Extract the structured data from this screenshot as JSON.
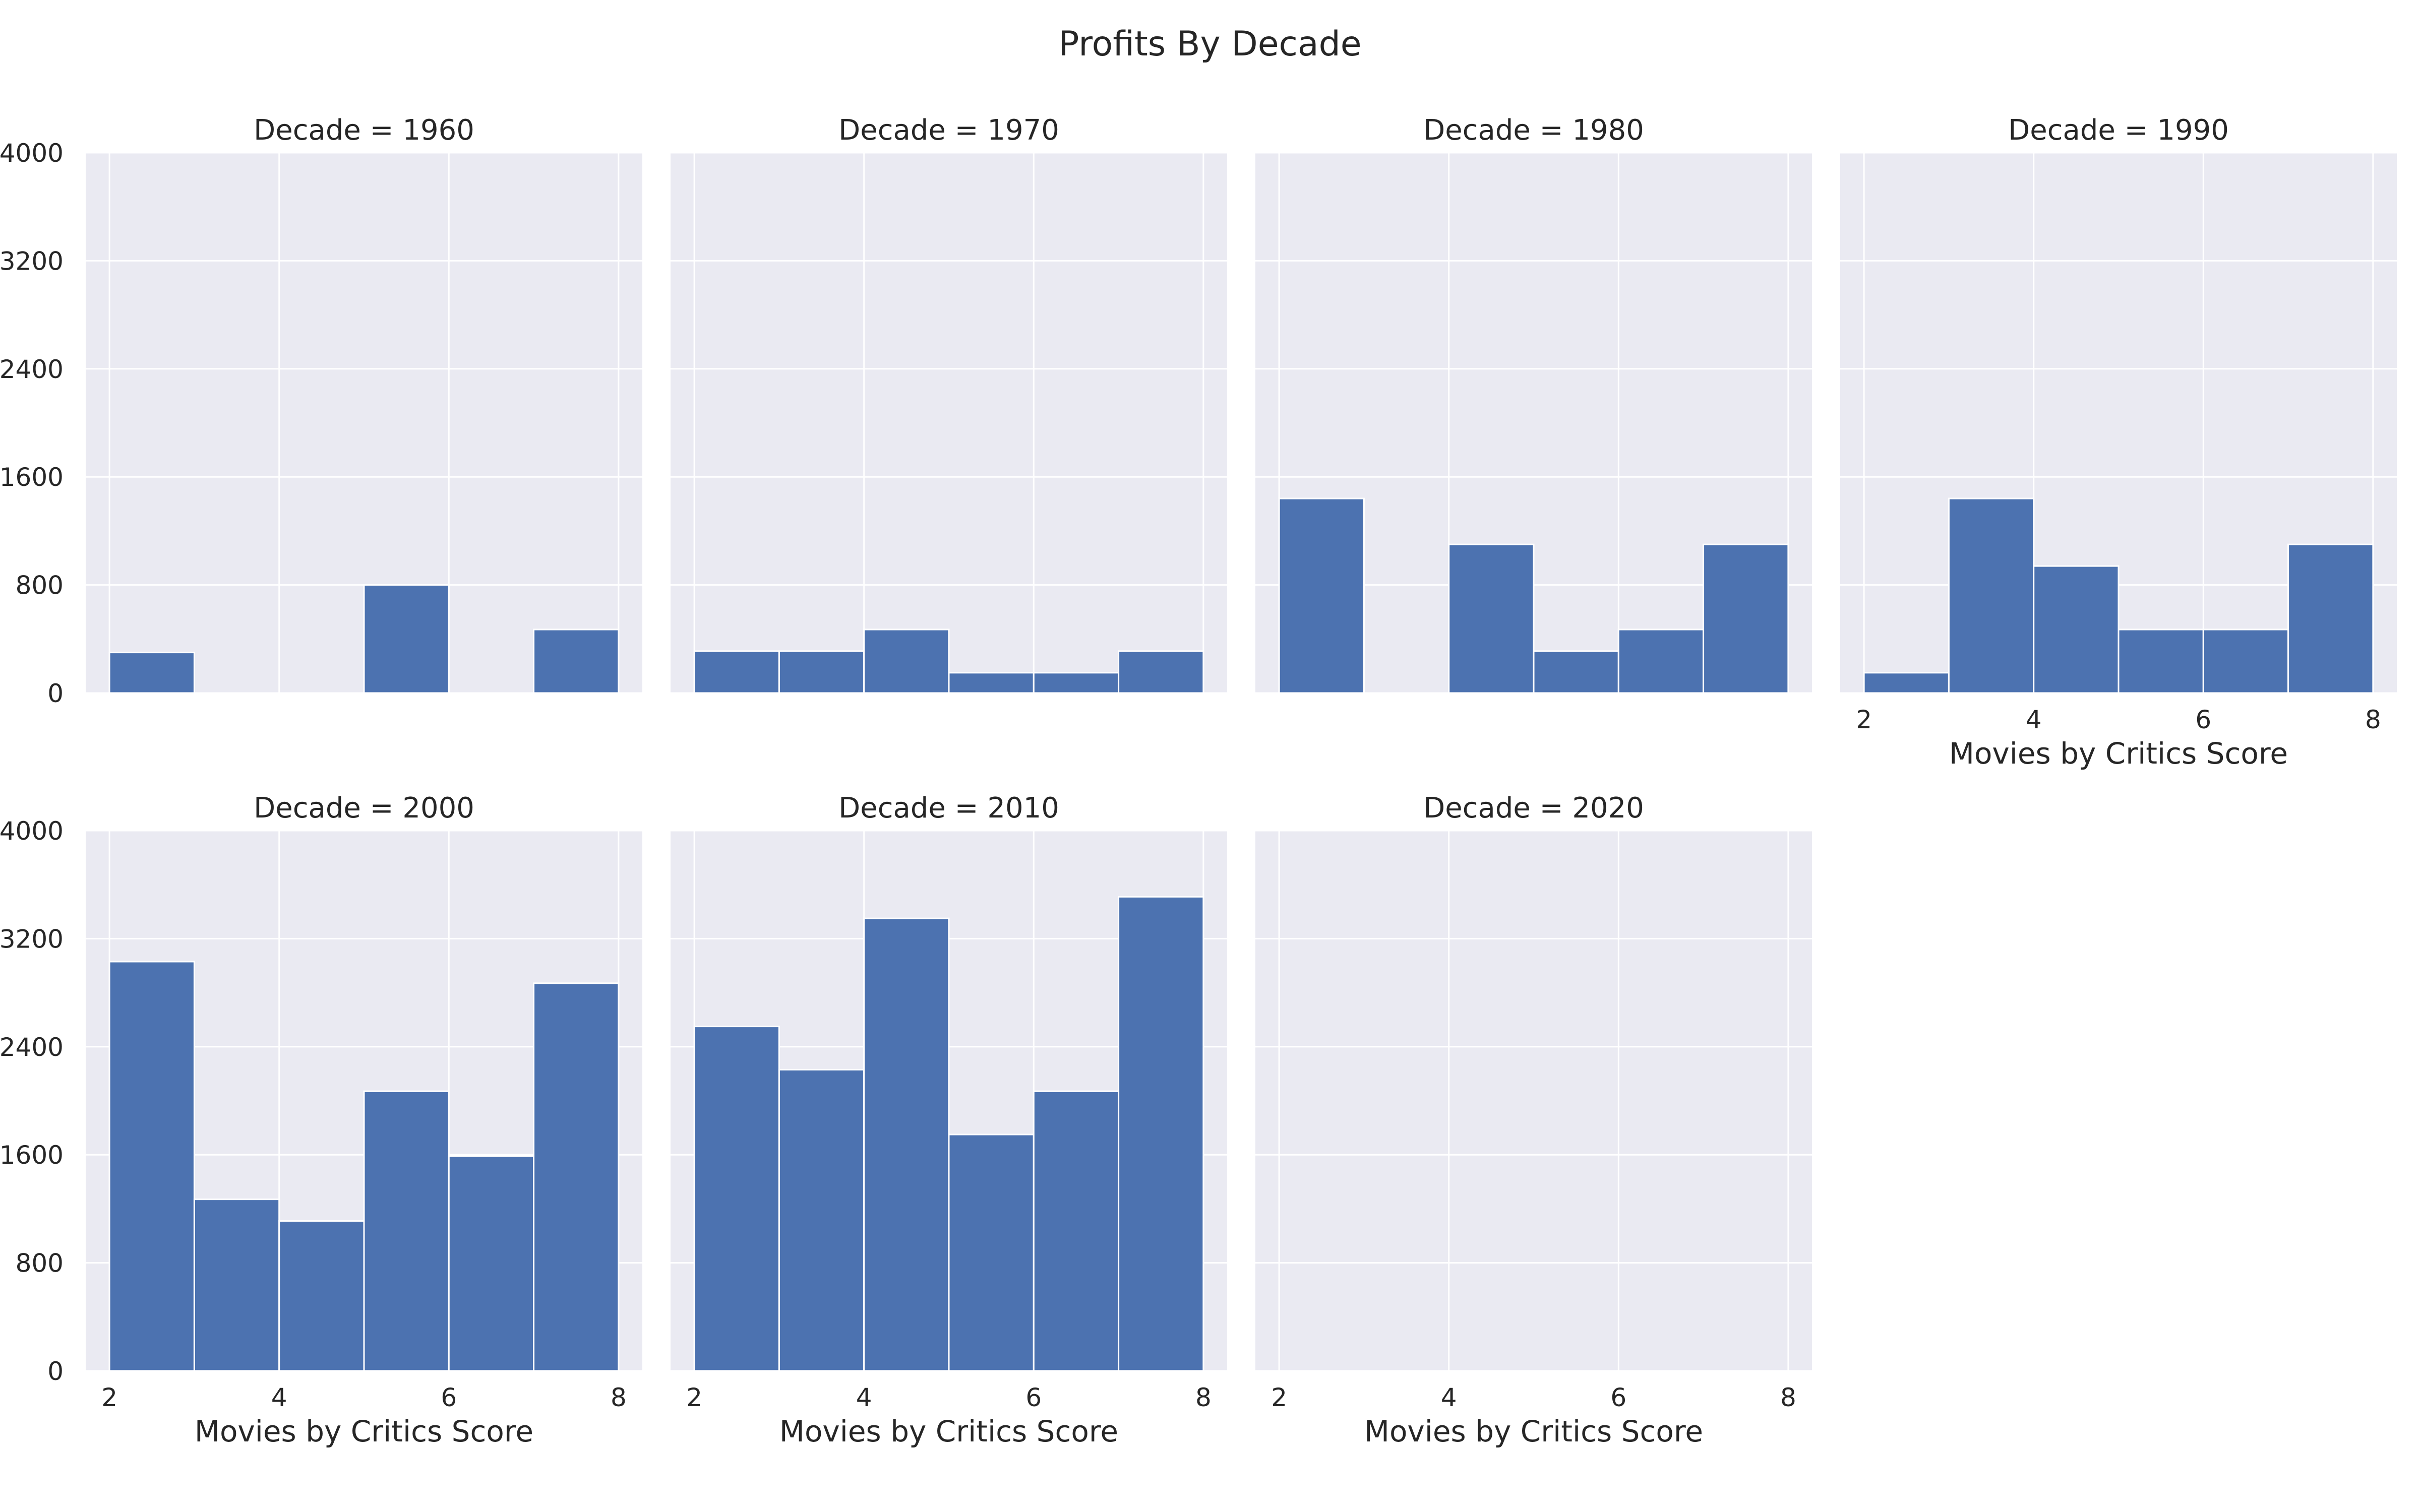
{
  "chart_data": {
    "type": "bar",
    "title": "Profits By Decade",
    "facet_prefix": "Decade = ",
    "xlabel": "Movies by Critics Score",
    "ylabel": "",
    "bin_edges": [
      2,
      3,
      4,
      5,
      6,
      7,
      8
    ],
    "xlim": [
      1.72,
      8.28
    ],
    "xticks": [
      2,
      4,
      6,
      8
    ],
    "ylim": [
      0,
      4000
    ],
    "yticks": [
      0,
      800,
      1600,
      2400,
      3200,
      4000
    ],
    "grid": true,
    "colors": {
      "bar": "#4c72b0",
      "panel_bg": "#eaeaf2",
      "grid": "#ffffff",
      "text": "#262626"
    },
    "panels": [
      {
        "decade": "1960",
        "values": [
          300,
          0,
          0,
          800,
          0,
          470
        ],
        "x_ticks_shown": false,
        "x_label_shown": false
      },
      {
        "decade": "1970",
        "values": [
          310,
          310,
          470,
          150,
          150,
          310
        ],
        "x_ticks_shown": false,
        "x_label_shown": false
      },
      {
        "decade": "1980",
        "values": [
          1440,
          0,
          1100,
          310,
          470,
          1100
        ],
        "x_ticks_shown": false,
        "x_label_shown": false
      },
      {
        "decade": "1990",
        "values": [
          150,
          1440,
          940,
          470,
          470,
          1100
        ],
        "x_ticks_shown": true,
        "x_label_shown": true
      },
      {
        "decade": "2000",
        "values": [
          3030,
          1270,
          1110,
          2070,
          1590,
          2870
        ],
        "x_ticks_shown": true,
        "x_label_shown": true
      },
      {
        "decade": "2010",
        "values": [
          2550,
          2230,
          3350,
          1750,
          2070,
          3510
        ],
        "x_ticks_shown": true,
        "x_label_shown": true
      },
      {
        "decade": "2020",
        "values": [
          0,
          0,
          0,
          0,
          0,
          0
        ],
        "x_ticks_shown": true,
        "x_label_shown": true
      }
    ]
  }
}
